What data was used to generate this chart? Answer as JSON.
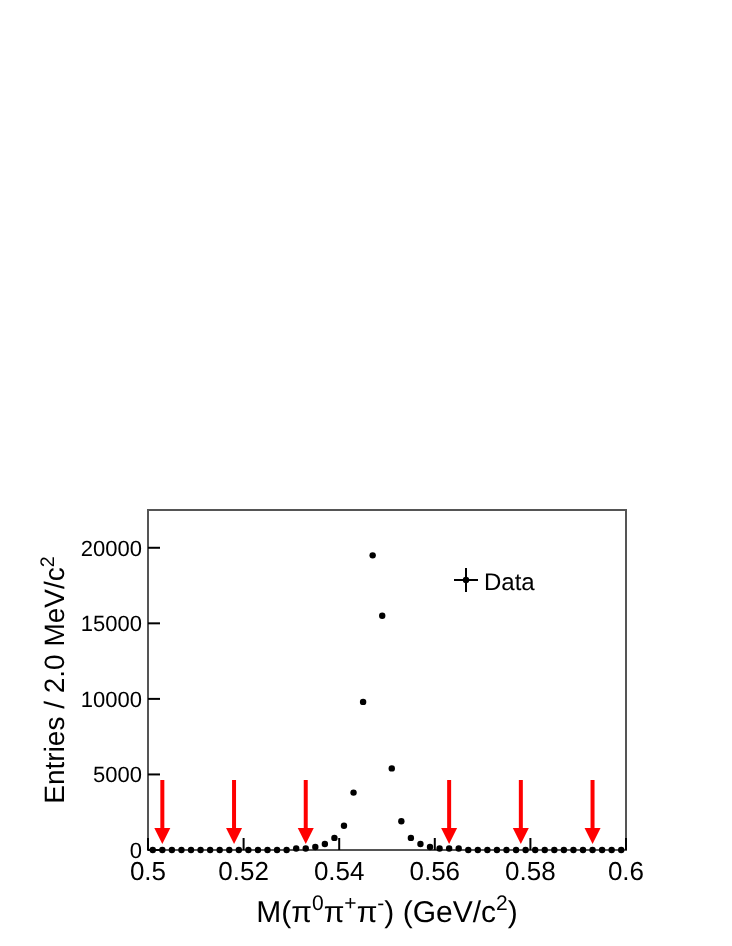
{
  "chart_data": {
    "type": "scatter",
    "xlabel": "M(π$^{0}$π$^{+}$π$^{-}$) (GeV/c$^{2}$)",
    "ylabel": "Entries / 2.0 MeV/c$^{2}$",
    "x": [
      0.501,
      0.503,
      0.505,
      0.507,
      0.509,
      0.511,
      0.513,
      0.515,
      0.517,
      0.519,
      0.521,
      0.523,
      0.525,
      0.527,
      0.529,
      0.531,
      0.533,
      0.535,
      0.537,
      0.539,
      0.541,
      0.543,
      0.545,
      0.547,
      0.549,
      0.551,
      0.553,
      0.555,
      0.557,
      0.559,
      0.561,
      0.563,
      0.565,
      0.567,
      0.569,
      0.571,
      0.573,
      0.575,
      0.577,
      0.579,
      0.581,
      0.583,
      0.585,
      0.587,
      0.589,
      0.591,
      0.593,
      0.595,
      0.597,
      0.599
    ],
    "series": [
      {
        "name": "Data",
        "color": "#000000",
        "values": [
          0,
          0,
          0,
          0,
          0,
          0,
          0,
          0,
          0,
          0,
          0,
          0,
          0,
          0,
          0,
          100,
          100,
          200,
          400,
          800,
          1600,
          3800,
          9800,
          19500,
          15500,
          5400,
          1900,
          800,
          400,
          200,
          100,
          100,
          100,
          0,
          0,
          0,
          0,
          0,
          0,
          0,
          0,
          0,
          0,
          0,
          0,
          0,
          0,
          0,
          0,
          0
        ]
      }
    ],
    "xlim": [
      0.5,
      0.6
    ],
    "xticks": [
      0.5,
      0.52,
      0.54,
      0.56,
      0.58,
      0.6
    ],
    "ylim": [
      0,
      22500
    ],
    "yticks": [
      0,
      5000,
      10000,
      15000,
      20000
    ],
    "ref_lines": [
      {
        "axis": "x",
        "value": 0.503,
        "color": "#ff0000"
      },
      {
        "axis": "x",
        "value": 0.518,
        "color": "#ff0000"
      },
      {
        "axis": "x",
        "value": 0.533,
        "color": "#ff0000"
      },
      {
        "axis": "x",
        "value": 0.563,
        "color": "#ff0000"
      },
      {
        "axis": "x",
        "value": 0.578,
        "color": "#ff0000"
      },
      {
        "axis": "x",
        "value": 0.593,
        "color": "#ff0000"
      }
    ],
    "marker": "circle",
    "legend": "top right",
    "grid": false
  }
}
